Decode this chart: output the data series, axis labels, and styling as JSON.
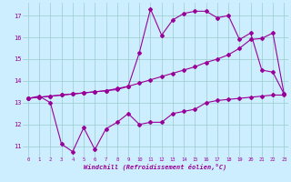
{
  "xlabel": "Windchill (Refroidissement éolien,°C)",
  "bg_color": "#cceeff",
  "line_color": "#990099",
  "grid_color": "#99cccc",
  "xlim": [
    -0.5,
    23.4
  ],
  "ylim": [
    10.5,
    17.6
  ],
  "xticks": [
    0,
    1,
    2,
    3,
    4,
    5,
    6,
    7,
    8,
    9,
    10,
    11,
    12,
    13,
    14,
    15,
    16,
    17,
    18,
    19,
    20,
    21,
    22,
    23
  ],
  "yticks": [
    11,
    12,
    13,
    14,
    15,
    16,
    17
  ],
  "line1_x": [
    0,
    1,
    2,
    3,
    4,
    5,
    6,
    7,
    8,
    9,
    10,
    11,
    12,
    13,
    14,
    15,
    16,
    17,
    18,
    19,
    20,
    21,
    22,
    23
  ],
  "line1_y": [
    13.2,
    13.3,
    13.0,
    11.1,
    10.75,
    11.85,
    10.85,
    11.8,
    12.1,
    12.5,
    12.0,
    12.1,
    12.1,
    12.5,
    12.6,
    12.7,
    13.0,
    13.1,
    13.15,
    13.2,
    13.25,
    13.3,
    13.35,
    13.35
  ],
  "line2_x": [
    0,
    1,
    2,
    3,
    4,
    5,
    6,
    7,
    8,
    9,
    10,
    11,
    12,
    13,
    14,
    15,
    16,
    17,
    18,
    19,
    20,
    21,
    22,
    23
  ],
  "line2_y": [
    13.2,
    13.25,
    13.3,
    13.35,
    13.4,
    13.45,
    13.5,
    13.55,
    13.65,
    13.75,
    13.9,
    14.05,
    14.2,
    14.35,
    14.5,
    14.65,
    14.85,
    15.0,
    15.2,
    15.5,
    15.9,
    15.95,
    16.2,
    13.4
  ],
  "line3_x": [
    0,
    1,
    2,
    3,
    4,
    5,
    6,
    7,
    8,
    9,
    10,
    11,
    12,
    13,
    14,
    15,
    16,
    17,
    18,
    19,
    20,
    21,
    22,
    23
  ],
  "line3_y": [
    13.2,
    13.25,
    13.3,
    13.35,
    13.4,
    13.45,
    13.5,
    13.55,
    13.6,
    13.75,
    15.3,
    17.3,
    16.1,
    16.8,
    17.1,
    17.2,
    17.2,
    16.9,
    17.0,
    15.9,
    16.2,
    14.5,
    14.4,
    13.4
  ]
}
